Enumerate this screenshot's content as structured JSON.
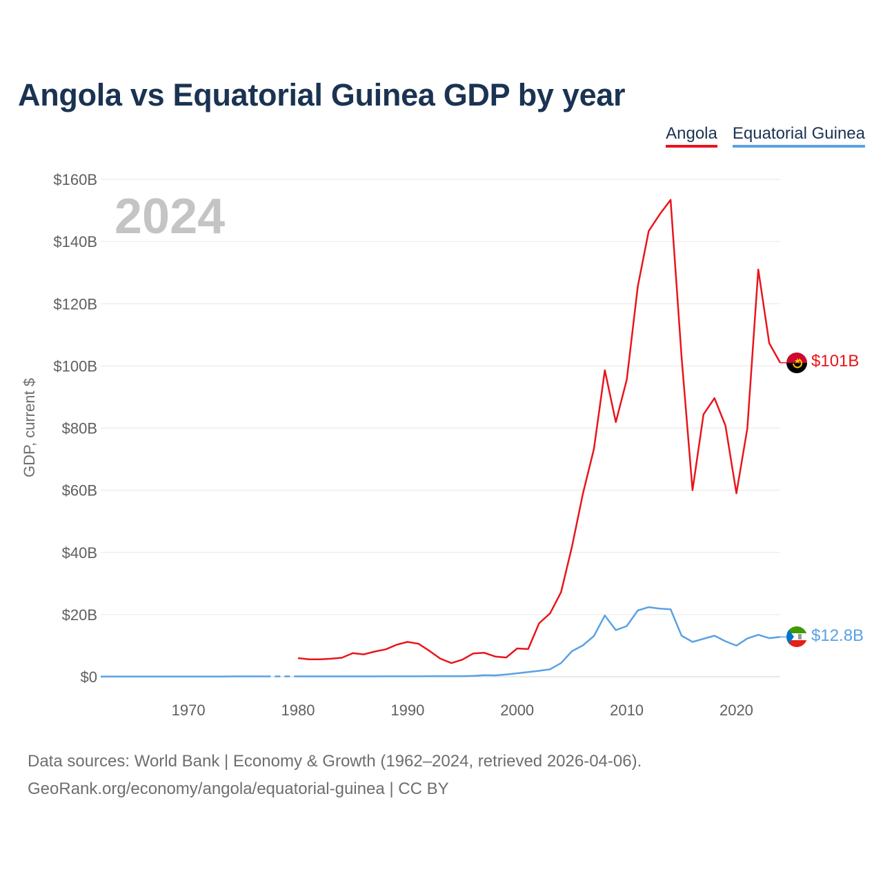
{
  "title": "Angola vs Equatorial Guinea GDP by year",
  "legend": {
    "angola": "Angola",
    "equatorial_guinea": "Equatorial Guinea"
  },
  "source": {
    "line1": "Data sources: World Bank | Economy & Growth (1962–2024, retrieved 2026-04-06).",
    "line2": "GeoRank.org/economy/angola/equatorial-guinea | CC BY"
  },
  "colors": {
    "angola": "#e8141b",
    "equatorial_guinea": "#5aa1e3",
    "title": "#1b3352"
  },
  "chart_data": {
    "type": "line",
    "title": "Angola vs Equatorial Guinea GDP by year",
    "xlabel": "",
    "ylabel": "GDP, current $",
    "year_display": "2024",
    "xlim": [
      1962,
      2024
    ],
    "ylim": [
      0,
      160
    ],
    "x_ticks": [
      1970,
      1980,
      1990,
      2000,
      2010,
      2020
    ],
    "y_ticks": [
      0,
      20,
      40,
      60,
      80,
      100,
      120,
      140,
      160
    ],
    "y_tick_labels": [
      "$0",
      "$20B",
      "$40B",
      "$60B",
      "$80B",
      "$100B",
      "$120B",
      "$140B",
      "$160B"
    ],
    "grid": true,
    "legend_position": "top-right",
    "series": [
      {
        "name": "Angola",
        "end_label": "$101B",
        "x": [
          1980,
          1981,
          1982,
          1983,
          1984,
          1985,
          1986,
          1987,
          1988,
          1989,
          1990,
          1991,
          1992,
          1993,
          1994,
          1995,
          1996,
          1997,
          1998,
          1999,
          2000,
          2001,
          2002,
          2003,
          2004,
          2005,
          2006,
          2007,
          2008,
          2009,
          2010,
          2011,
          2012,
          2013,
          2014,
          2015,
          2016,
          2017,
          2018,
          2019,
          2020,
          2021,
          2022,
          2023,
          2024
        ],
        "values": [
          6.0,
          5.6,
          5.6,
          5.8,
          6.1,
          7.6,
          7.2,
          8.1,
          8.8,
          10.3,
          11.2,
          10.6,
          8.3,
          5.8,
          4.4,
          5.5,
          7.5,
          7.7,
          6.5,
          6.2,
          9.1,
          8.9,
          17.2,
          20.4,
          27.2,
          41.8,
          58.9,
          73.2,
          98.6,
          81.9,
          95.6,
          125.5,
          143.4,
          148.7,
          153.4,
          102.9,
          60.0,
          84.4,
          89.6,
          80.8,
          59.0,
          79.8,
          131.0,
          107.3,
          101.0
        ]
      },
      {
        "name": "Equatorial Guinea",
        "end_label": "$12.8B",
        "gap_years": [
          1977,
          1980
        ],
        "x": [
          1962,
          1963,
          1964,
          1965,
          1966,
          1967,
          1968,
          1969,
          1970,
          1971,
          1972,
          1973,
          1974,
          1975,
          1976,
          1977,
          1980,
          1981,
          1982,
          1983,
          1984,
          1985,
          1986,
          1987,
          1988,
          1989,
          1990,
          1991,
          1992,
          1993,
          1994,
          1995,
          1996,
          1997,
          1998,
          1999,
          2000,
          2001,
          2002,
          2003,
          2004,
          2005,
          2006,
          2007,
          2008,
          2009,
          2010,
          2011,
          2012,
          2013,
          2014,
          2015,
          2016,
          2017,
          2018,
          2019,
          2020,
          2021,
          2022,
          2023,
          2024
        ],
        "values": [
          0.04,
          0.04,
          0.04,
          0.05,
          0.05,
          0.05,
          0.05,
          0.05,
          0.05,
          0.06,
          0.06,
          0.06,
          0.1,
          0.1,
          0.1,
          0.1,
          0.1,
          0.1,
          0.1,
          0.1,
          0.1,
          0.1,
          0.1,
          0.12,
          0.14,
          0.13,
          0.13,
          0.13,
          0.15,
          0.15,
          0.15,
          0.16,
          0.28,
          0.5,
          0.44,
          0.7,
          1.1,
          1.5,
          1.9,
          2.4,
          4.4,
          8.2,
          10.1,
          13.1,
          19.7,
          15.0,
          16.3,
          21.3,
          22.4,
          21.9,
          21.7,
          13.2,
          11.2,
          12.2,
          13.2,
          11.4,
          10.0,
          12.3,
          13.5,
          12.4,
          12.8
        ]
      }
    ]
  }
}
